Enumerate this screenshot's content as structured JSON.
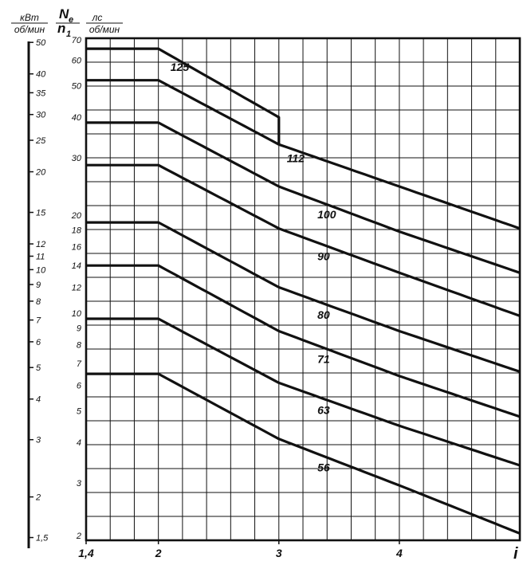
{
  "header": {
    "kw_unit": "кВт",
    "kw_unit_den": "об/мин",
    "n_symbol": "N",
    "n_sub": "е",
    "n1_symbol": "n",
    "n1_sub": "1",
    "hp_unit": "лс",
    "hp_unit_den": "об/мин"
  },
  "chart_data": {
    "type": "line",
    "x_axis_label": "i",
    "x_ticks": [
      "1,4",
      "2",
      "3",
      "4"
    ],
    "xlim": [
      1.4,
      5.0
    ],
    "y_scale": "log",
    "y_ticks_hp": [
      "70",
      "60",
      "50",
      "40",
      "30",
      "20",
      "18",
      "16",
      "14",
      "12",
      "10",
      "9",
      "8",
      "7",
      "6",
      "5",
      "4",
      "3",
      "2"
    ],
    "y_ticks_kw": [
      "50",
      "40",
      "35",
      "30",
      "25",
      "20",
      "15",
      "12",
      "11",
      "10",
      "9",
      "8",
      "7",
      "6",
      "5",
      "4",
      "3",
      "2",
      "1,5"
    ],
    "ylim_hp": [
      2,
      70
    ],
    "grid": true,
    "series": [
      {
        "name": "125",
        "x": [
          1.4,
          2.0,
          3.0,
          3.0
        ],
        "y": [
          65,
          65,
          40,
          33
        ]
      },
      {
        "name": "112",
        "x": [
          1.4,
          2.0,
          3.0,
          4.0,
          5.0
        ],
        "y": [
          52,
          52,
          33,
          24.5,
          18.2
        ]
      },
      {
        "name": "100",
        "x": [
          1.4,
          2.0,
          3.0,
          4.0,
          5.0
        ],
        "y": [
          38.5,
          38.5,
          24.5,
          17.8,
          13.3
        ]
      },
      {
        "name": "90",
        "x": [
          1.4,
          2.0,
          3.0,
          4.0,
          5.0
        ],
        "y": [
          28.5,
          28.5,
          18.2,
          13.3,
          9.8
        ]
      },
      {
        "name": "80",
        "x": [
          1.4,
          2.0,
          3.0,
          4.0,
          5.0
        ],
        "y": [
          19,
          19,
          12,
          8.8,
          6.6
        ]
      },
      {
        "name": "71",
        "x": [
          1.4,
          2.0,
          3.0,
          4.0,
          5.0
        ],
        "y": [
          14,
          14,
          8.8,
          6.4,
          4.8
        ]
      },
      {
        "name": "63",
        "x": [
          1.4,
          2.0,
          3.0,
          4.0,
          5.0
        ],
        "y": [
          9.6,
          9.6,
          6.1,
          4.5,
          3.4
        ]
      },
      {
        "name": "56",
        "x": [
          1.4,
          2.0,
          3.0,
          4.0,
          5.0
        ],
        "y": [
          6.5,
          6.5,
          4.1,
          2.95,
          2.1
        ]
      }
    ]
  }
}
